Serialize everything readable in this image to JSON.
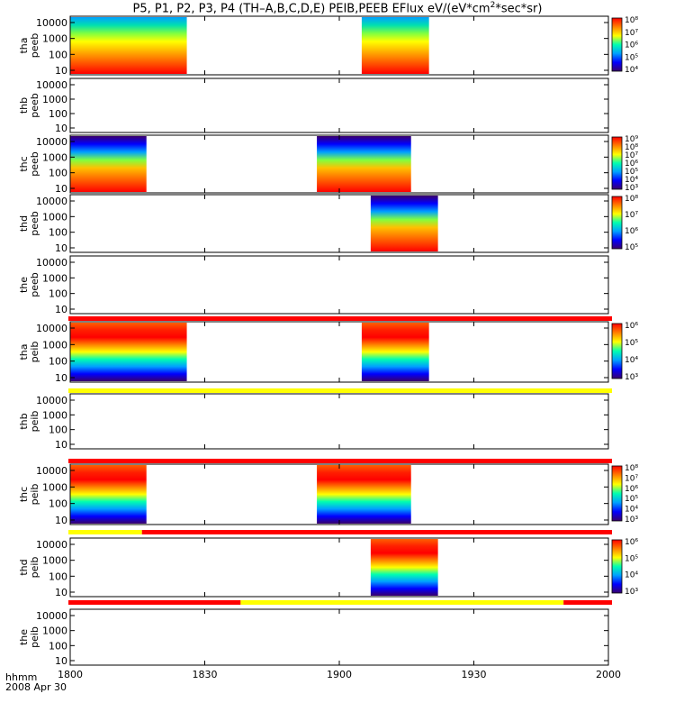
{
  "title": {
    "prefix": "P5, P1, P2, P3, P4 (TH–A,B,C,D,E) PEIB,PEEB EFlux eV/(eV*cm",
    "exp": "2",
    "suffix": "*sec*sr)"
  },
  "x_label": "hhmm",
  "date_label": "2008 Apr 30",
  "chart_data": {
    "type": "heatmap",
    "x_ticks": [
      "1800",
      "1830",
      "1900",
      "1930",
      "2000"
    ],
    "x_range": [
      "18:00",
      "20:00"
    ],
    "y_ticks": [
      "10",
      "100",
      "1000",
      "10000"
    ],
    "y_scale": "log",
    "colorscale": [
      "#3a006c",
      "#0000ff",
      "#00a0ff",
      "#00ffb0",
      "#ffff00",
      "#ff8000",
      "#ff0000"
    ],
    "bar_colors": {
      "red": "#ff0000",
      "yellow": "#ffff00"
    },
    "panels": [
      {
        "probe": "tha",
        "product": "peeb",
        "intervals": [
          [
            "18:00",
            "18:26"
          ],
          [
            "19:05",
            "19:20"
          ]
        ],
        "cbar": [
          "10⁴",
          "10⁵",
          "10⁶",
          "10⁷",
          "10⁸"
        ]
      },
      {
        "probe": "thb",
        "product": "peeb",
        "intervals": []
      },
      {
        "probe": "thc",
        "product": "peeb",
        "intervals": [
          [
            "18:00",
            "18:17"
          ],
          [
            "18:55",
            "19:16"
          ]
        ],
        "cbar": [
          "10³",
          "10⁴",
          "10⁵",
          "10⁶",
          "10⁷",
          "10⁸",
          "10⁹"
        ]
      },
      {
        "probe": "thd",
        "product": "peeb",
        "intervals": [
          [
            "19:07",
            "19:22"
          ]
        ],
        "cbar": [
          "10⁵",
          "10⁶",
          "10⁷",
          "10⁸"
        ]
      },
      {
        "probe": "the",
        "product": "peeb",
        "intervals": []
      },
      {
        "probe": "tha",
        "product": "peib",
        "intervals": [
          [
            "18:00",
            "18:26"
          ],
          [
            "19:05",
            "19:20"
          ]
        ],
        "cbar": [
          "10³",
          "10⁴",
          "10⁵",
          "10⁶"
        ]
      },
      {
        "probe": "thb",
        "product": "peib",
        "intervals": []
      },
      {
        "probe": "thc",
        "product": "peib",
        "intervals": [
          [
            "18:00",
            "18:17"
          ],
          [
            "18:55",
            "19:16"
          ]
        ],
        "cbar": [
          "10³",
          "10⁴",
          "10⁵",
          "10⁶",
          "10⁷",
          "10⁸"
        ]
      },
      {
        "probe": "thd",
        "product": "peib",
        "intervals": [
          [
            "19:07",
            "19:22"
          ]
        ],
        "cbar": [
          "10³",
          "10⁴",
          "10⁵",
          "10⁶"
        ]
      },
      {
        "probe": "the",
        "product": "peib",
        "intervals": []
      }
    ],
    "mode_bars": [
      {
        "after_panel": 4,
        "segments": [
          {
            "from": "18:00",
            "to": "20:00",
            "color": "red"
          }
        ]
      },
      {
        "after_panel": 5,
        "segments": [
          {
            "from": "18:00",
            "to": "20:00",
            "color": "yellow"
          }
        ]
      },
      {
        "after_panel": 6,
        "segments": [
          {
            "from": "18:00",
            "to": "20:00",
            "color": "red"
          }
        ]
      },
      {
        "after_panel": 7,
        "segments": [
          {
            "from": "18:00",
            "to": "18:16",
            "color": "yellow"
          },
          {
            "from": "18:16",
            "to": "20:00",
            "color": "red"
          }
        ]
      },
      {
        "after_panel": 8,
        "segments": [
          {
            "from": "18:00",
            "to": "18:38",
            "color": "red"
          },
          {
            "from": "18:38",
            "to": "19:50",
            "color": "yellow"
          },
          {
            "from": "19:50",
            "to": "20:00",
            "color": "red"
          }
        ]
      }
    ]
  }
}
